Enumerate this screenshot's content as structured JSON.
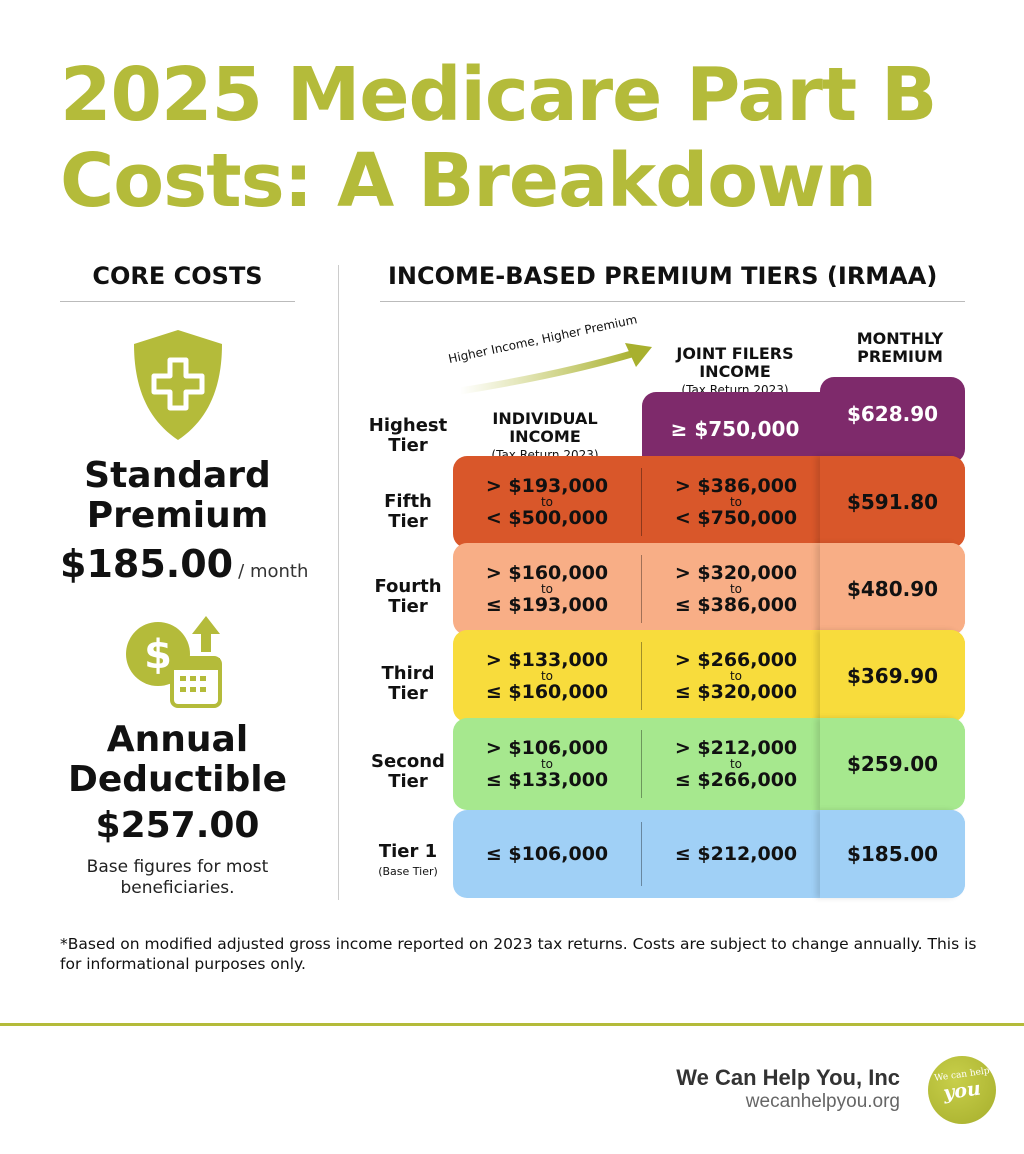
{
  "title": {
    "line1": "2025 Medicare Part B",
    "line2": "Costs: A Breakdown"
  },
  "colors": {
    "accent": "#b4bb3a",
    "highest": "#7e2a6b",
    "fifth": "#d9572a",
    "fourth": "#f8ae86",
    "third": "#f8dc3c",
    "second": "#a6e88e",
    "tier1": "#a0d0f6"
  },
  "core": {
    "heading": "CORE COSTS",
    "icon1": "shield-plus-icon",
    "premium_label_1": "Standard",
    "premium_label_2": "Premium",
    "premium_value": "$185.00",
    "premium_unit": "/ month",
    "icon2": "dollar-calendar-up-icon",
    "deductible_label_1": "Annual",
    "deductible_label_2": "Deductible",
    "deductible_value": "$257.00",
    "note": "Base figures for most beneficiaries."
  },
  "tiers": {
    "heading": "INCOME-BASED PREMIUM TIERS (IRMAA)",
    "arrow_label": "Higher Income, Higher Premium",
    "col_individual": {
      "title_1": "INDIVIDUAL",
      "title_2": "INCOME",
      "sub": "(Tax Return 2023)"
    },
    "col_joint": {
      "title_1": "JOINT FILERS",
      "title_2": "INCOME",
      "sub": "(Tax Return 2023)"
    },
    "col_premium": {
      "title_1": "MONTHLY",
      "title_2": "PREMIUM"
    },
    "rows": [
      {
        "label": "Highest Tier",
        "sub": "",
        "individual": "",
        "joint": "≥ $750,000",
        "premium": "$628.90"
      },
      {
        "label": "Fifth Tier",
        "sub": "",
        "ind_from": "> $193,000",
        "ind_to": "< $500,000",
        "joint_from": "> $386,000",
        "joint_to": "< $750,000",
        "premium": "$591.80"
      },
      {
        "label": "Fourth Tier",
        "sub": "",
        "ind_from": "> $160,000",
        "ind_to": "≤ $193,000",
        "joint_from": "> $320,000",
        "joint_to": "≤ $386,000",
        "premium": "$480.90"
      },
      {
        "label": "Third Tier",
        "sub": "",
        "ind_from": "> $133,000",
        "ind_to": "≤ $160,000",
        "joint_from": "> $266,000",
        "joint_to": "≤ $320,000",
        "premium": "$369.90"
      },
      {
        "label": "Second Tier",
        "sub": "",
        "ind_from": "> $106,000",
        "ind_to": "≤ $133,000",
        "joint_from": "> $212,000",
        "joint_to": "≤ $266,000",
        "premium": "$259.00"
      },
      {
        "label": "Tier 1",
        "sub": "(Base Tier)",
        "individual": "≤ $106,000",
        "joint": "≤ $212,000",
        "premium": "$185.00"
      }
    ],
    "to": "to"
  },
  "footnote": "*Based on modified adjusted gross income reported on 2023 tax returns. Costs are subject to change annually. This is for informational purposes only.",
  "footer": {
    "company": "We Can Help You, Inc",
    "url": "wecanhelpyou.org",
    "logo_text_1": "We can help",
    "logo_text_2": "you"
  }
}
